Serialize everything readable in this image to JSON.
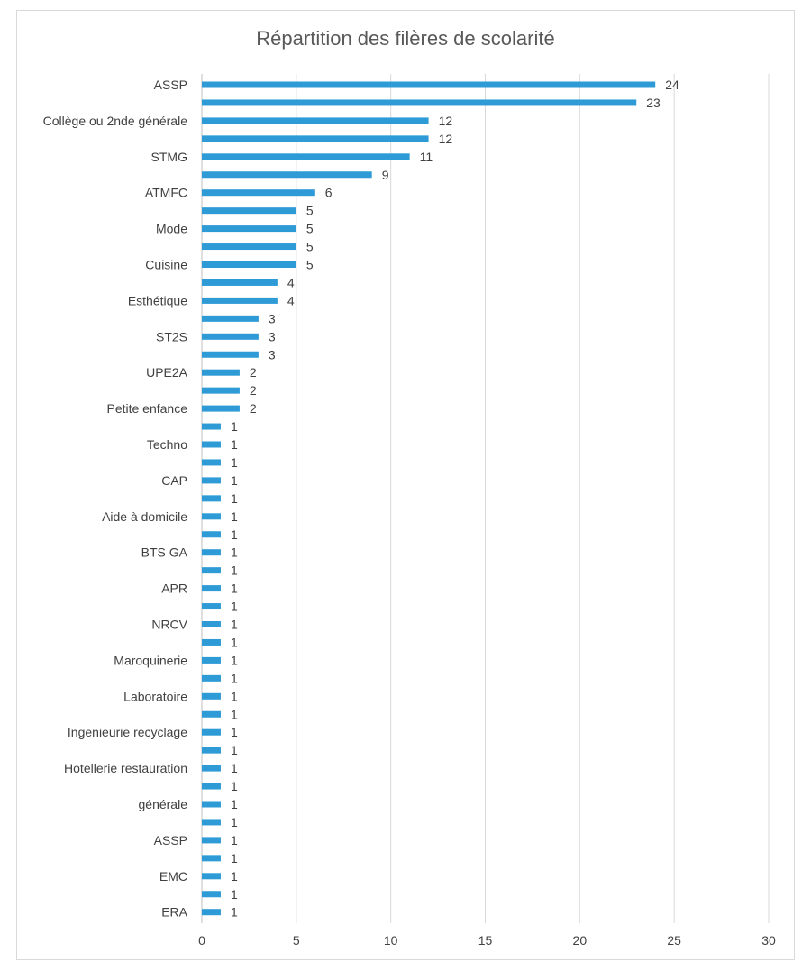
{
  "chart_data": {
    "type": "bar",
    "orientation": "horizontal",
    "title": "Répartition des filères de scolarité",
    "xlim": [
      0,
      30
    ],
    "xticks": [
      0,
      5,
      10,
      15,
      20,
      25,
      30
    ],
    "grid": true,
    "bar_color": "#2e9bd6",
    "categories": [
      "ASSP",
      "",
      "Collège ou 2nde générale",
      "",
      "STMG",
      "",
      "ATMFC",
      "",
      "Mode",
      "",
      "Cuisine",
      "",
      "Esthétique",
      "",
      "ST2S",
      "",
      "UPE2A",
      "",
      "Petite enfance",
      "",
      "Techno",
      "",
      "CAP",
      "",
      "Aide à domicile",
      "",
      "BTS GA",
      "",
      "APR",
      "",
      "NRCV",
      "",
      "Maroquinerie",
      "",
      "Laboratoire",
      "",
      "Ingenieurie recyclage",
      "",
      "Hotellerie restauration",
      "",
      "générale",
      "",
      "ASSP",
      "",
      "EMC",
      "",
      "ERA"
    ],
    "values": [
      24,
      23,
      12,
      12,
      11,
      9,
      6,
      5,
      5,
      5,
      5,
      4,
      4,
      3,
      3,
      3,
      2,
      2,
      2,
      1,
      1,
      1,
      1,
      1,
      1,
      1,
      1,
      1,
      1,
      1,
      1,
      1,
      1,
      1,
      1,
      1,
      1,
      1,
      1,
      1,
      1,
      1,
      1,
      1,
      1,
      1,
      1
    ]
  }
}
